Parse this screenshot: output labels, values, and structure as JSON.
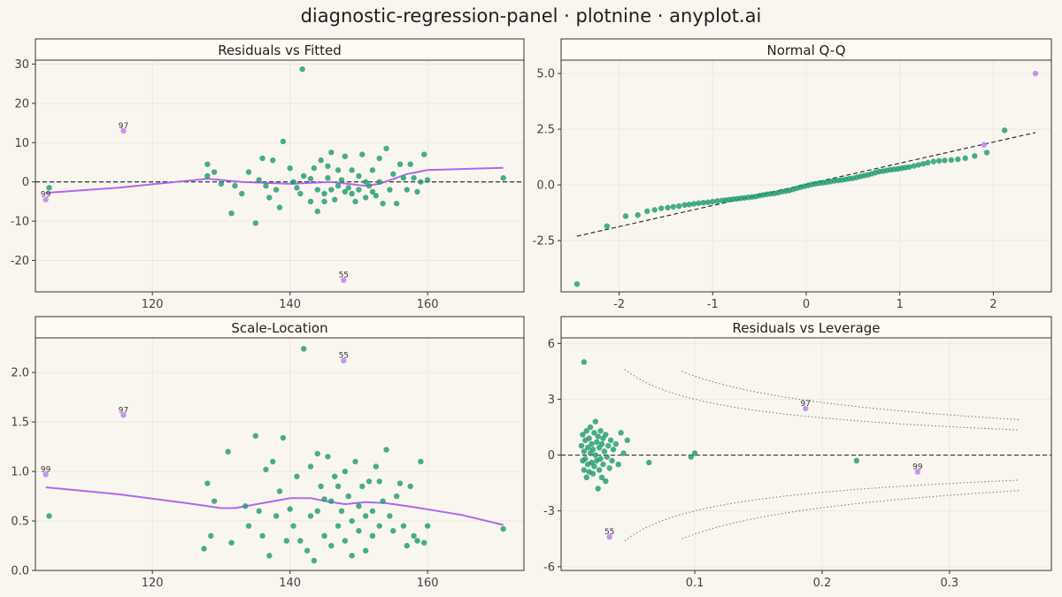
{
  "title": "diagnostic-regression-panel · plotnine · anyplot.ai",
  "colors": {
    "background": "#f9f6ef",
    "points": "#1a9a6e",
    "highlight": "#c089f2",
    "smooth": "#b266f0",
    "reference": "#333333",
    "cooks": "#777777",
    "grid": "#ece8df",
    "strip": "#fffcf3"
  },
  "chart_data": [
    {
      "type": "scatter",
      "title": "Residuals vs Fitted",
      "xlim": [
        103,
        174
      ],
      "ylim": [
        -28,
        31
      ],
      "xticks": [
        120,
        140,
        160
      ],
      "yticks": [
        -20,
        -10,
        0,
        10,
        20,
        30
      ],
      "reference_line": 0,
      "points": [
        [
          105,
          -1.5
        ],
        [
          128,
          4.5
        ],
        [
          131.5,
          -8
        ],
        [
          128,
          1.5
        ],
        [
          129,
          2.5
        ],
        [
          130,
          -0.5
        ],
        [
          132,
          -1
        ],
        [
          133,
          -3
        ],
        [
          134,
          2.5
        ],
        [
          135,
          -10.5
        ],
        [
          135.5,
          0.5
        ],
        [
          136,
          6
        ],
        [
          136.5,
          -1
        ],
        [
          137,
          -4
        ],
        [
          137.5,
          5.5
        ],
        [
          138,
          -2
        ],
        [
          138.5,
          -6.5
        ],
        [
          139,
          10.3
        ],
        [
          140,
          3.5
        ],
        [
          140.5,
          0
        ],
        [
          141,
          -1.5
        ],
        [
          141.5,
          -3
        ],
        [
          141.8,
          28.7
        ],
        [
          142,
          1.5
        ],
        [
          143,
          -5
        ],
        [
          143,
          0.8
        ],
        [
          143.5,
          3.5
        ],
        [
          144,
          -7.5
        ],
        [
          144,
          -2
        ],
        [
          144.5,
          5.5
        ],
        [
          145,
          -3
        ],
        [
          145,
          -5
        ],
        [
          145.5,
          4
        ],
        [
          145.5,
          1
        ],
        [
          146,
          7.5
        ],
        [
          146,
          -2
        ],
        [
          146.5,
          -4.5
        ],
        [
          147,
          3
        ],
        [
          147,
          -1
        ],
        [
          147.5,
          0.5
        ],
        [
          148,
          -2.5
        ],
        [
          148,
          6.5
        ],
        [
          148.5,
          -1.5
        ],
        [
          149,
          -3
        ],
        [
          149,
          3
        ],
        [
          149.5,
          -5
        ],
        [
          150,
          1.5
        ],
        [
          150,
          -2
        ],
        [
          150.5,
          7
        ],
        [
          151,
          -4
        ],
        [
          151,
          0
        ],
        [
          151.5,
          -1
        ],
        [
          152,
          -2.5
        ],
        [
          152,
          3
        ],
        [
          152.5,
          -3.5
        ],
        [
          153,
          0
        ],
        [
          153,
          6
        ],
        [
          153.5,
          -5.5
        ],
        [
          154,
          8.5
        ],
        [
          154.5,
          -2
        ],
        [
          155,
          2
        ],
        [
          155.5,
          -5.5
        ],
        [
          156,
          4.5
        ],
        [
          156.5,
          1
        ],
        [
          157,
          -2
        ],
        [
          157.5,
          4.5
        ],
        [
          158,
          1
        ],
        [
          158.5,
          -2.5
        ],
        [
          159,
          0
        ],
        [
          159.5,
          7
        ],
        [
          160,
          0.5
        ],
        [
          171,
          1
        ]
      ],
      "labeled_points": [
        {
          "label": "97",
          "x": 115.8,
          "y": 13
        },
        {
          "label": "99",
          "x": 104.5,
          "y": -4.5
        },
        {
          "label": "55",
          "x": 147.8,
          "y": -25
        }
      ],
      "smooth": [
        [
          104.5,
          -2.8
        ],
        [
          115,
          -1.5
        ],
        [
          128,
          0.8
        ],
        [
          133,
          0
        ],
        [
          140,
          -0.5
        ],
        [
          146,
          0
        ],
        [
          151,
          -1
        ],
        [
          153,
          -0.5
        ],
        [
          157,
          2
        ],
        [
          160,
          3
        ],
        [
          171,
          3.6
        ]
      ]
    },
    {
      "type": "scatter",
      "title": "Normal Q-Q",
      "xlim": [
        -2.62,
        2.62
      ],
      "ylim": [
        -4.8,
        5.6
      ],
      "xticks": [
        -2,
        -1,
        0,
        1,
        2
      ],
      "yticks": [
        -2.5,
        0.0,
        2.5,
        5.0
      ],
      "ytick_labels": [
        "-2.5",
        "0.0",
        "2.5",
        "5.0"
      ],
      "reference_line": [
        [
          -2.45,
          -2.3
        ],
        [
          2.45,
          2.35
        ]
      ],
      "points": [
        [
          -2.45,
          -4.45
        ],
        [
          -2.13,
          -1.85
        ],
        [
          -1.93,
          -1.4
        ],
        [
          -1.8,
          -1.35
        ],
        [
          -1.7,
          -1.18
        ],
        [
          -1.62,
          -1.12
        ],
        [
          -1.55,
          -1.05
        ],
        [
          -1.48,
          -1.02
        ],
        [
          -1.42,
          -0.98
        ],
        [
          -1.36,
          -0.95
        ],
        [
          -1.3,
          -0.9
        ],
        [
          -1.25,
          -0.88
        ],
        [
          -1.2,
          -0.85
        ],
        [
          -1.15,
          -0.82
        ],
        [
          -1.1,
          -0.8
        ],
        [
          -1.05,
          -0.78
        ],
        [
          -1.0,
          -0.75
        ],
        [
          -0.95,
          -0.72
        ],
        [
          -0.9,
          -0.7
        ],
        [
          -0.86,
          -0.68
        ],
        [
          -0.82,
          -0.66
        ],
        [
          -0.78,
          -0.64
        ],
        [
          -0.74,
          -0.62
        ],
        [
          -0.7,
          -0.6
        ],
        [
          -0.66,
          -0.58
        ],
        [
          -0.62,
          -0.56
        ],
        [
          -0.58,
          -0.54
        ],
        [
          -0.54,
          -0.52
        ],
        [
          -0.5,
          -0.48
        ],
        [
          -0.46,
          -0.45
        ],
        [
          -0.42,
          -0.42
        ],
        [
          -0.38,
          -0.4
        ],
        [
          -0.34,
          -0.38
        ],
        [
          -0.3,
          -0.35
        ],
        [
          -0.26,
          -0.3
        ],
        [
          -0.22,
          -0.28
        ],
        [
          -0.18,
          -0.25
        ],
        [
          -0.14,
          -0.2
        ],
        [
          -0.1,
          -0.15
        ],
        [
          -0.06,
          -0.1
        ],
        [
          -0.02,
          -0.06
        ],
        [
          0.02,
          -0.02
        ],
        [
          0.06,
          0.02
        ],
        [
          0.1,
          0.05
        ],
        [
          0.14,
          0.08
        ],
        [
          0.18,
          0.1
        ],
        [
          0.22,
          0.12
        ],
        [
          0.26,
          0.15
        ],
        [
          0.3,
          0.18
        ],
        [
          0.34,
          0.2
        ],
        [
          0.38,
          0.22
        ],
        [
          0.42,
          0.25
        ],
        [
          0.46,
          0.28
        ],
        [
          0.5,
          0.3
        ],
        [
          0.54,
          0.34
        ],
        [
          0.58,
          0.38
        ],
        [
          0.62,
          0.42
        ],
        [
          0.66,
          0.45
        ],
        [
          0.7,
          0.5
        ],
        [
          0.74,
          0.55
        ],
        [
          0.78,
          0.6
        ],
        [
          0.82,
          0.62
        ],
        [
          0.86,
          0.65
        ],
        [
          0.9,
          0.68
        ],
        [
          0.94,
          0.7
        ],
        [
          0.98,
          0.72
        ],
        [
          1.02,
          0.75
        ],
        [
          1.06,
          0.78
        ],
        [
          1.1,
          0.8
        ],
        [
          1.15,
          0.85
        ],
        [
          1.2,
          0.9
        ],
        [
          1.25,
          0.95
        ],
        [
          1.3,
          1.0
        ],
        [
          1.36,
          1.05
        ],
        [
          1.42,
          1.08
        ],
        [
          1.48,
          1.1
        ],
        [
          1.55,
          1.12
        ],
        [
          1.62,
          1.15
        ],
        [
          1.7,
          1.2
        ],
        [
          1.8,
          1.3
        ],
        [
          1.93,
          1.45
        ],
        [
          2.12,
          2.45
        ]
      ],
      "labeled_points": [
        {
          "label": "",
          "x": 1.9,
          "y": 1.8
        },
        {
          "label": "",
          "x": 2.45,
          "y": 5.0
        }
      ]
    },
    {
      "type": "scatter",
      "title": "Scale-Location",
      "xlim": [
        103,
        174
      ],
      "ylim": [
        0,
        2.35
      ],
      "xticks": [
        120,
        140,
        160
      ],
      "yticks": [
        0.0,
        0.5,
        1.0,
        1.5,
        2.0
      ],
      "ytick_labels": [
        "0.0",
        "0.5",
        "1.0",
        "1.5",
        "2.0"
      ],
      "points": [
        [
          105,
          0.55
        ],
        [
          127.5,
          0.22
        ],
        [
          128,
          0.88
        ],
        [
          128.5,
          0.35
        ],
        [
          129,
          0.7
        ],
        [
          131,
          1.2
        ],
        [
          131.5,
          0.28
        ],
        [
          133.5,
          0.65
        ],
        [
          134,
          0.45
        ],
        [
          135,
          1.36
        ],
        [
          135.5,
          0.6
        ],
        [
          136,
          0.35
        ],
        [
          136.5,
          1.02
        ],
        [
          137,
          0.15
        ],
        [
          137.5,
          1.1
        ],
        [
          138,
          0.55
        ],
        [
          138.5,
          0.8
        ],
        [
          139,
          1.34
        ],
        [
          139.5,
          0.3
        ],
        [
          140,
          0.62
        ],
        [
          140.5,
          0.45
        ],
        [
          141,
          0.95
        ],
        [
          141.5,
          0.3
        ],
        [
          142,
          2.24
        ],
        [
          142.5,
          0.2
        ],
        [
          143,
          1.05
        ],
        [
          143,
          0.55
        ],
        [
          143.5,
          0.1
        ],
        [
          144,
          1.18
        ],
        [
          144,
          0.6
        ],
        [
          144.5,
          0.85
        ],
        [
          145,
          0.35
        ],
        [
          145,
          0.72
        ],
        [
          145.5,
          1.15
        ],
        [
          146,
          0.25
        ],
        [
          146,
          0.7
        ],
        [
          146.5,
          0.95
        ],
        [
          147,
          0.45
        ],
        [
          147,
          0.85
        ],
        [
          147.5,
          0.6
        ],
        [
          148,
          0.3
        ],
        [
          148,
          1.0
        ],
        [
          148.5,
          0.75
        ],
        [
          149,
          0.5
        ],
        [
          149,
          0.15
        ],
        [
          149.5,
          1.1
        ],
        [
          150,
          0.65
        ],
        [
          150,
          0.4
        ],
        [
          150.5,
          0.85
        ],
        [
          151,
          0.55
        ],
        [
          151,
          0.2
        ],
        [
          151.5,
          0.9
        ],
        [
          152,
          0.35
        ],
        [
          152,
          0.6
        ],
        [
          152.5,
          1.05
        ],
        [
          153,
          0.9
        ],
        [
          153,
          0.45
        ],
        [
          153.5,
          0.7
        ],
        [
          154,
          1.22
        ],
        [
          154.5,
          0.55
        ],
        [
          155,
          0.4
        ],
        [
          155.5,
          0.75
        ],
        [
          156,
          0.88
        ],
        [
          156.5,
          0.45
        ],
        [
          157,
          0.25
        ],
        [
          157.5,
          0.85
        ],
        [
          158,
          0.35
        ],
        [
          158.5,
          0.3
        ],
        [
          159,
          1.1
        ],
        [
          159.5,
          0.28
        ],
        [
          160,
          0.45
        ],
        [
          171,
          0.42
        ]
      ],
      "labeled_points": [
        {
          "label": "97",
          "x": 115.8,
          "y": 1.57
        },
        {
          "label": "99",
          "x": 104.5,
          "y": 0.97
        },
        {
          "label": "55",
          "x": 147.8,
          "y": 2.12
        }
      ],
      "smooth": [
        [
          104.5,
          0.84
        ],
        [
          115,
          0.77
        ],
        [
          125,
          0.68
        ],
        [
          128,
          0.65
        ],
        [
          130,
          0.63
        ],
        [
          132,
          0.63
        ],
        [
          136,
          0.68
        ],
        [
          140,
          0.73
        ],
        [
          143,
          0.73
        ],
        [
          146,
          0.69
        ],
        [
          148,
          0.67
        ],
        [
          151,
          0.69
        ],
        [
          154,
          0.68
        ],
        [
          158,
          0.64
        ],
        [
          165,
          0.56
        ],
        [
          171,
          0.46
        ]
      ]
    },
    {
      "type": "scatter",
      "title": "Residuals vs Leverage",
      "xlim": [
        -0.005,
        0.38
      ],
      "ylim": [
        -6.2,
        6.3
      ],
      "xticks": [
        0.1,
        0.2,
        0.3
      ],
      "xtick_labels": [
        "0.1",
        "0.2",
        "0.3"
      ],
      "yticks": [
        -6,
        -3,
        0,
        3,
        6
      ],
      "reference_line": 0,
      "points": [
        [
          0.013,
          5.0
        ],
        [
          0.011,
          0.5
        ],
        [
          0.012,
          -0.3
        ],
        [
          0.012,
          1.1
        ],
        [
          0.013,
          -0.8
        ],
        [
          0.013,
          0.2
        ],
        [
          0.014,
          0.8
        ],
        [
          0.014,
          -0.2
        ],
        [
          0.015,
          1.3
        ],
        [
          0.015,
          -1.2
        ],
        [
          0.016,
          0.4
        ],
        [
          0.016,
          -0.5
        ],
        [
          0.017,
          0.9
        ],
        [
          0.017,
          -0.9
        ],
        [
          0.018,
          0.1
        ],
        [
          0.018,
          1.5
        ],
        [
          0.019,
          -0.4
        ],
        [
          0.019,
          0.6
        ],
        [
          0.02,
          -1.0
        ],
        [
          0.02,
          0.3
        ],
        [
          0.021,
          1.2
        ],
        [
          0.021,
          -0.6
        ],
        [
          0.022,
          1.8
        ],
        [
          0.022,
          0.0
        ],
        [
          0.023,
          -0.3
        ],
        [
          0.023,
          0.7
        ],
        [
          0.024,
          -1.8
        ],
        [
          0.024,
          1.0
        ],
        [
          0.025,
          -0.8
        ],
        [
          0.025,
          0.4
        ],
        [
          0.026,
          1.3
        ],
        [
          0.026,
          -0.2
        ],
        [
          0.027,
          0.6
        ],
        [
          0.027,
          -1.2
        ],
        [
          0.028,
          0.9
        ],
        [
          0.028,
          -0.5
        ],
        [
          0.029,
          0.2
        ],
        [
          0.03,
          -1.4
        ],
        [
          0.03,
          1.1
        ],
        [
          0.031,
          -0.1
        ],
        [
          0.032,
          0.5
        ],
        [
          0.033,
          -0.7
        ],
        [
          0.034,
          0.8
        ],
        [
          0.035,
          -0.3
        ],
        [
          0.036,
          0.3
        ],
        [
          0.038,
          0.6
        ],
        [
          0.04,
          -0.5
        ],
        [
          0.042,
          1.2
        ],
        [
          0.044,
          0.1
        ],
        [
          0.047,
          0.8
        ],
        [
          0.064,
          -0.4
        ],
        [
          0.097,
          -0.1
        ],
        [
          0.1,
          0.1
        ],
        [
          0.227,
          -0.3
        ]
      ],
      "labeled_points": [
        {
          "label": "97",
          "x": 0.187,
          "y": 2.5
        },
        {
          "label": "99",
          "x": 0.275,
          "y": -0.9
        },
        {
          "label": "55",
          "x": 0.033,
          "y": -4.4
        }
      ],
      "cooks_distance_lines": [
        {
          "sign": 1,
          "d": 0.5
        },
        {
          "sign": 1,
          "d": 1.0
        },
        {
          "sign": -1,
          "d": 0.5
        },
        {
          "sign": -1,
          "d": 1.0
        }
      ]
    }
  ]
}
